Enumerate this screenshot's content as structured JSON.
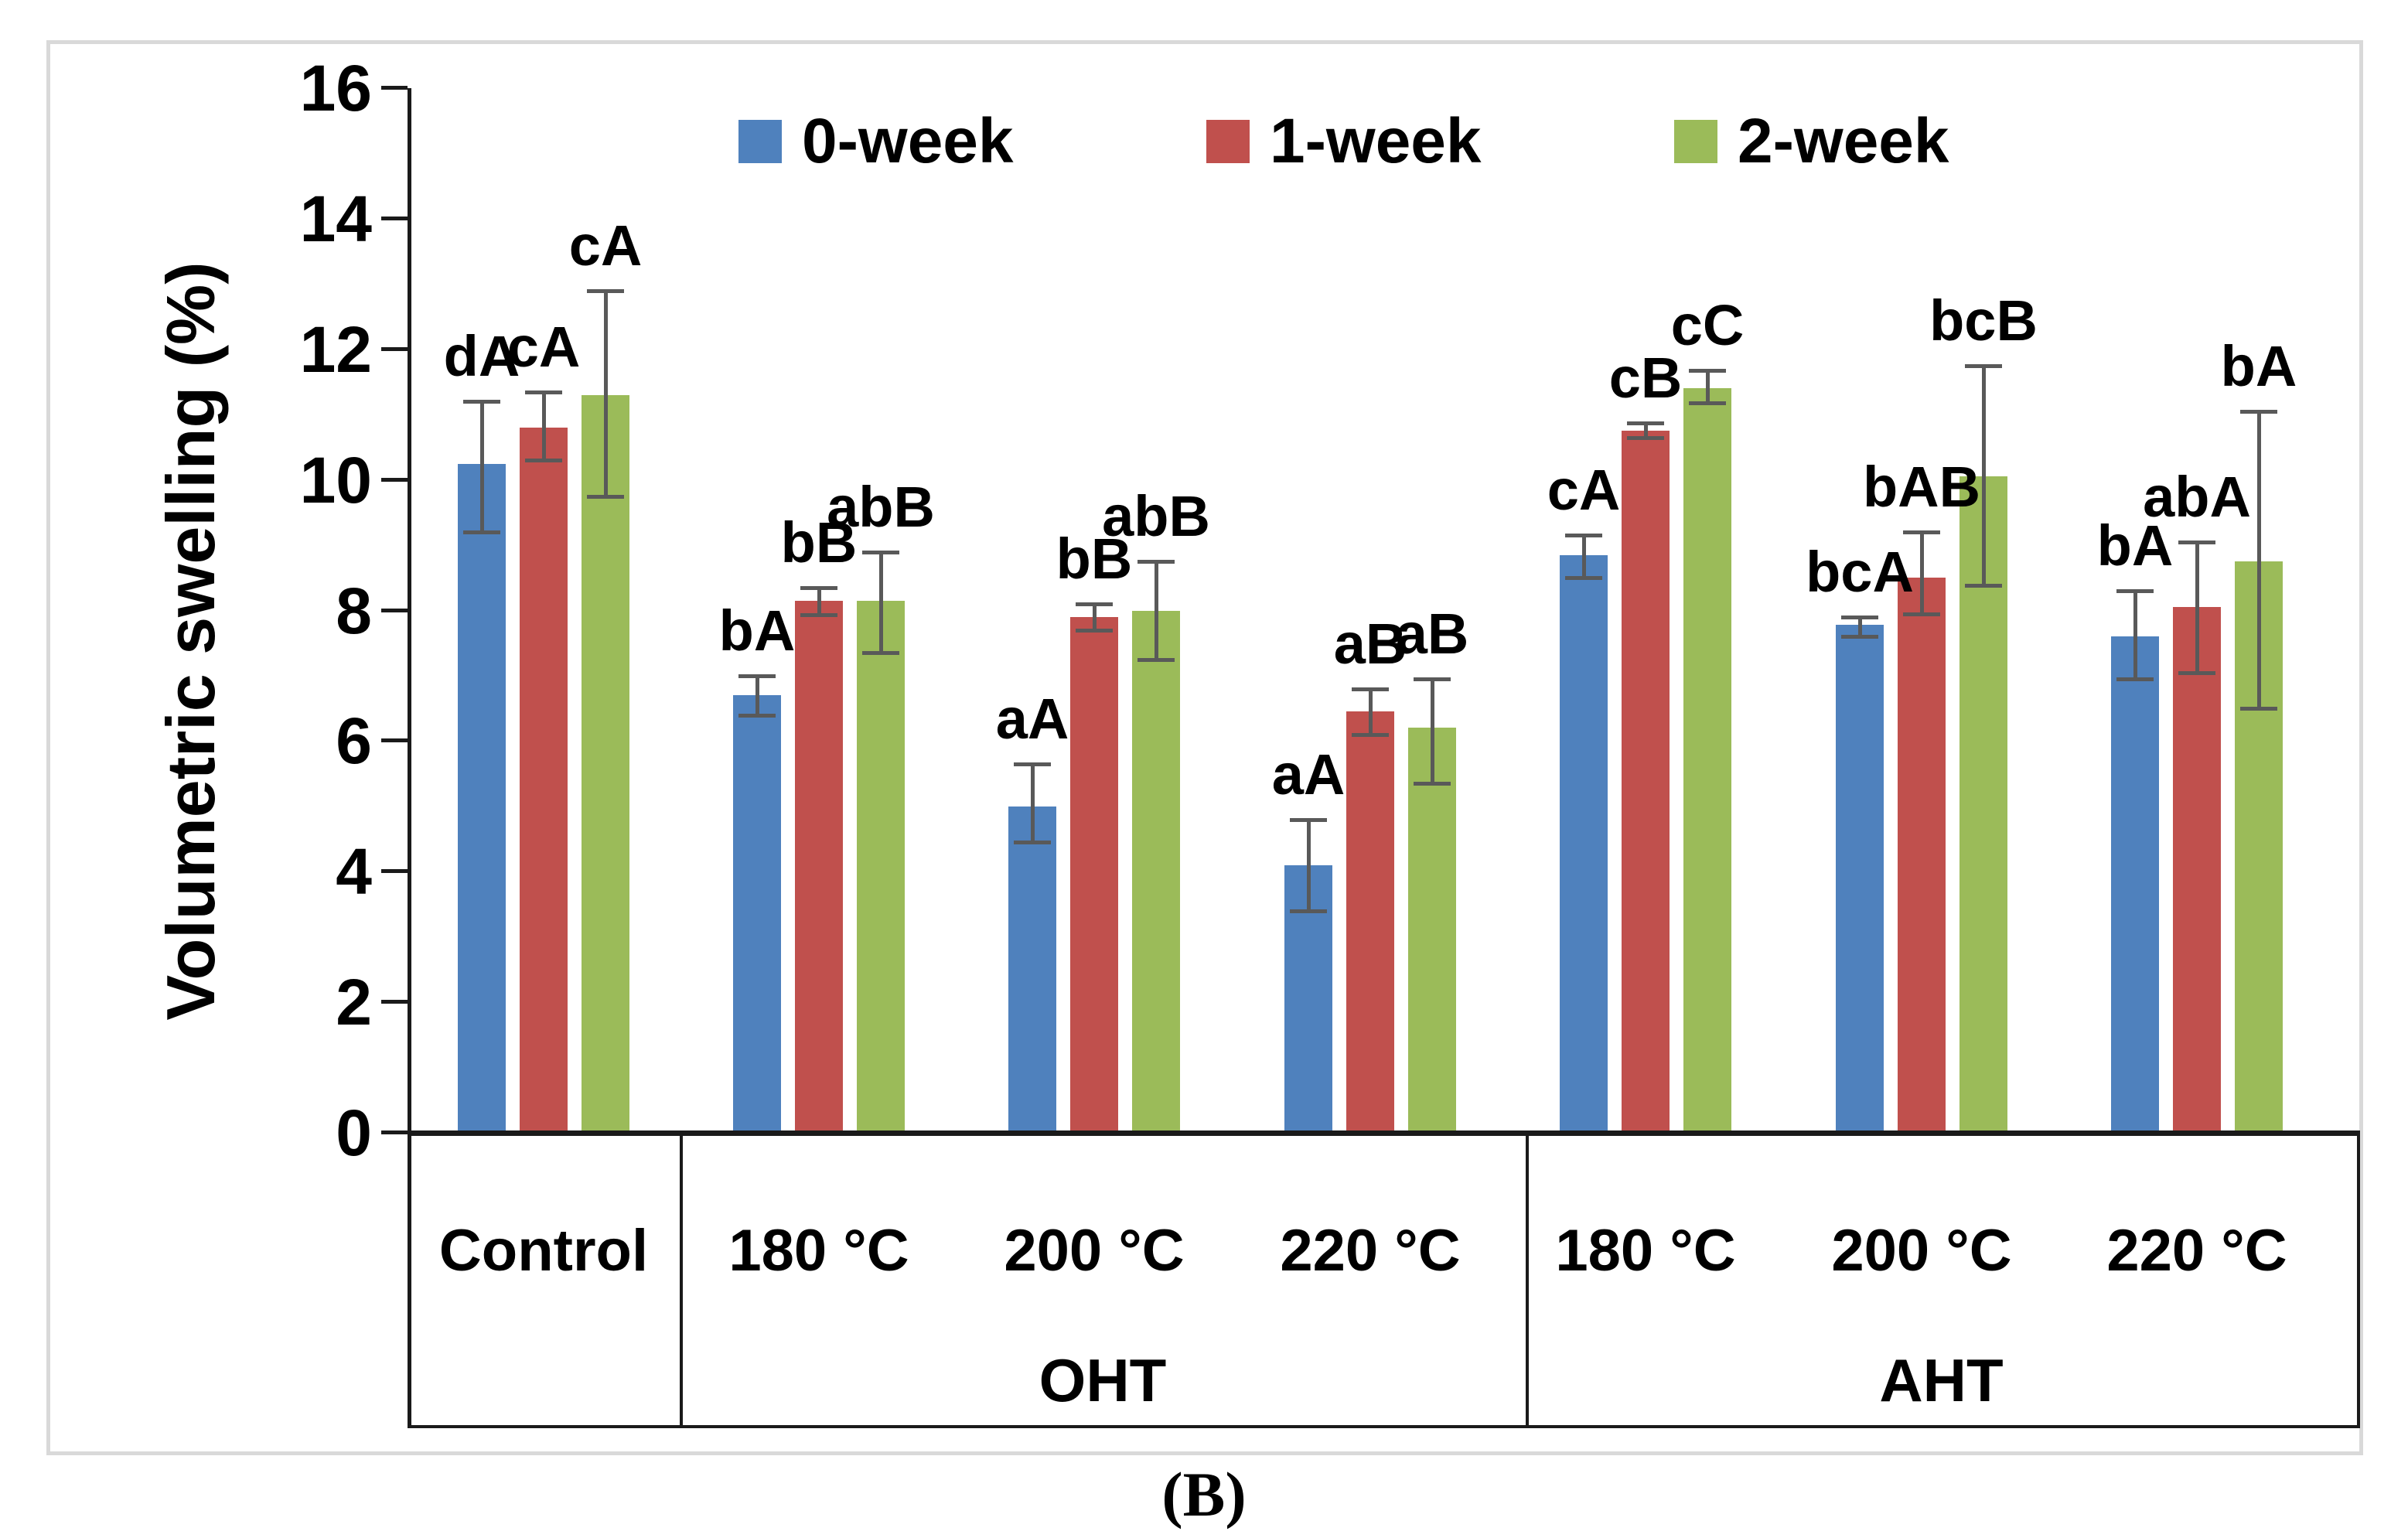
{
  "figure": {
    "caption": "(B)"
  },
  "chart_data": {
    "type": "bar",
    "title": "",
    "ylabel": "Volumetric swelling (%)",
    "xlabel": "",
    "ylim": [
      0,
      16
    ],
    "ytick_step": 2,
    "grid": false,
    "legend_position": "top-center",
    "error_bar_color": "#595959",
    "categories": [
      "Control",
      "180 °C",
      "200 °C",
      "220 °C",
      "180 °C",
      "200 °C",
      "220 °C"
    ],
    "x_groups": [
      {
        "label": "OHT",
        "start": 1,
        "end": 3
      },
      {
        "label": "AHT",
        "start": 4,
        "end": 6
      }
    ],
    "series": [
      {
        "name": "0-week",
        "color": "#4F81BD",
        "values": [
          10.25,
          6.7,
          5.0,
          4.1,
          8.85,
          7.78,
          7.6
        ],
        "error_low": [
          9.2,
          6.4,
          4.45,
          3.4,
          8.5,
          7.6,
          6.95
        ],
        "error_high": [
          11.2,
          7.0,
          5.65,
          4.8,
          9.15,
          7.9,
          8.3
        ],
        "bar_labels": [
          "dA",
          "bA",
          "aA",
          "aA",
          "cA",
          "bcA",
          "bA"
        ]
      },
      {
        "name": "1-week",
        "color": "#C0504D",
        "values": [
          10.8,
          8.15,
          7.9,
          6.45,
          10.75,
          8.5,
          8.05
        ],
        "error_low": [
          10.3,
          7.93,
          7.7,
          6.1,
          10.65,
          7.95,
          7.05
        ],
        "error_high": [
          11.35,
          8.35,
          8.1,
          6.8,
          10.87,
          9.2,
          9.05
        ],
        "bar_labels": [
          "cA",
          "bB",
          "bB",
          "aB",
          "cB",
          "bAB",
          "abA"
        ]
      },
      {
        "name": "2-week",
        "color": "#9BBB59",
        "values": [
          11.3,
          8.15,
          8.0,
          6.2,
          11.4,
          10.05,
          8.75
        ],
        "error_low": [
          9.75,
          7.35,
          7.25,
          5.35,
          11.18,
          8.38,
          6.5
        ],
        "error_high": [
          12.9,
          8.9,
          8.75,
          6.95,
          11.68,
          11.75,
          11.05
        ],
        "bar_labels": [
          "cA",
          "abB",
          "abB",
          "aB",
          "cC",
          "bcB",
          "bA"
        ]
      }
    ]
  }
}
